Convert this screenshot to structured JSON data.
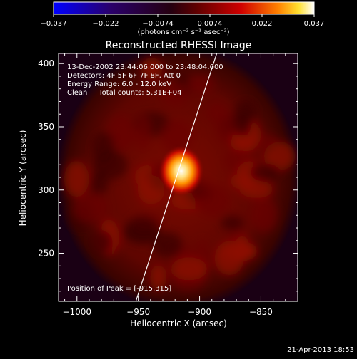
{
  "colorbar": {
    "ticks": [
      "-0.037",
      "-0.022",
      "-0.0074",
      "0.0074",
      "0.022",
      "0.037"
    ],
    "unit_label": "(photons cm⁻² s⁻¹ asec⁻²)",
    "min": -0.037,
    "max": 0.037
  },
  "chart_data": {
    "type": "heatmap",
    "title": "Reconstructed RHESSI Image",
    "xlabel": "Heliocentric X (arcsec)",
    "ylabel": "Heliocentric Y (arcsec)",
    "xlim": [
      -1015,
      -820
    ],
    "ylim": [
      212,
      408
    ],
    "x_ticks": [
      -1000,
      -950,
      -900,
      -850
    ],
    "y_ticks": [
      250,
      300,
      350,
      400
    ],
    "x_tick_labels": [
      "−1000",
      "−950",
      "−900",
      "−850"
    ],
    "y_tick_labels": [
      "250",
      "300",
      "350",
      "400"
    ],
    "peak": {
      "x": -915,
      "y": 315
    },
    "limb_line": {
      "x1": -952,
      "y1": 212,
      "x2": -886,
      "y2": 408
    },
    "annotations": [
      "13-Dec-2002 23:44:06.000 to 23:48:04.000",
      "Detectors: 4F 5F 6F 7F 8F, Att 0",
      "Energy Range: 6.0 - 12.0 keV",
      "Clean     Total counts: 5.31E+04"
    ],
    "peak_label": "Position of Peak = [-915,315]",
    "timestamp": "21-Apr-2013 18:53",
    "colormap": [
      "#0000ff",
      "#200040",
      "#000000",
      "#5a0000",
      "#c80000",
      "#ff7000",
      "#ffd000",
      "#ffffff"
    ]
  }
}
